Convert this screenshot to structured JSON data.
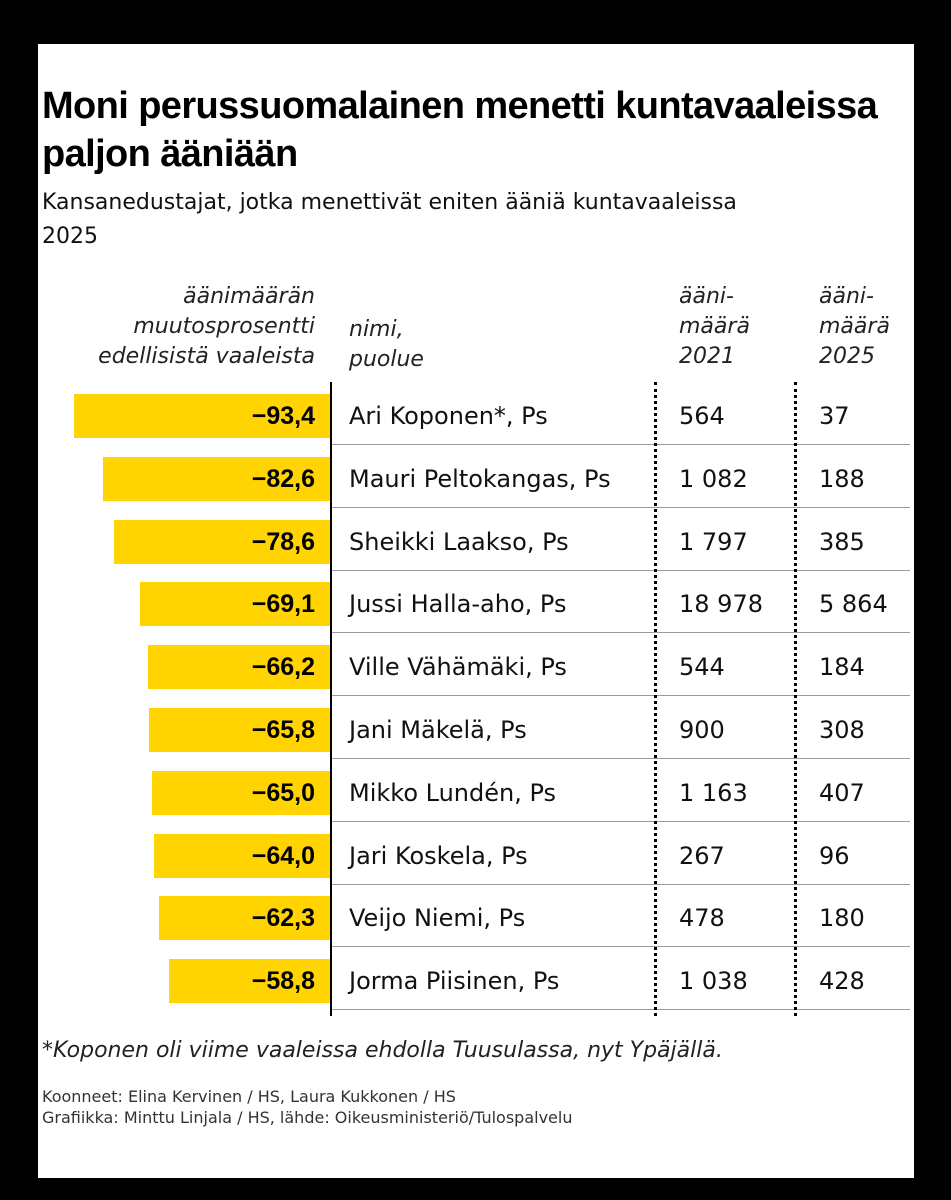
{
  "title": "Moni perussuomalainen menetti kuntavaaleissa paljon ääniään",
  "subtitle": "Kansanedustajat, jotka menettivät eniten ääniä kuntavaaleissa 2025",
  "headers": {
    "change": "äänimäärän\nmuutosprosentti\nedellisistä vaaleista",
    "name": "nimi,\npuolue",
    "votes_2021": "ääni-\nmäärä\n2021",
    "votes_2025": "ääni-\nmäärä\n2025"
  },
  "colors": {
    "bar": "#FFD400",
    "background": "#000000",
    "card": "#ffffff"
  },
  "chart_data": {
    "type": "bar",
    "orientation": "horizontal",
    "title": "Moni perussuomalainen menetti kuntavaaleissa paljon ääniään",
    "subtitle": "Kansanedustajat, jotka menettivät eniten ääniä kuntavaaleissa 2025",
    "xlabel": "äänimäärän muutosprosentti edellisistä vaaleista",
    "categories": [
      "Ari Koponen*, Ps",
      "Mauri Peltokangas, Ps",
      "Sheikki Laakso, Ps",
      "Jussi Halla-aho, Ps",
      "Ville Vähämäki, Ps",
      "Jani Mäkelä, Ps",
      "Mikko Lundén, Ps",
      "Jari Koskela, Ps",
      "Veijo Niemi, Ps",
      "Jorma Piisinen, Ps"
    ],
    "values": [
      -93.4,
      -82.6,
      -78.6,
      -69.1,
      -66.2,
      -65.8,
      -65.0,
      -64.0,
      -62.3,
      -58.8
    ],
    "xlim": [
      -100,
      0
    ],
    "rows": [
      {
        "label": "−93,4",
        "name": "Ari Koponen*, Ps",
        "votes_2021": "564",
        "votes_2025": "37"
      },
      {
        "label": "−82,6",
        "name": "Mauri Peltokangas, Ps",
        "votes_2021": "1 082",
        "votes_2025": "188"
      },
      {
        "label": "−78,6",
        "name": "Sheikki Laakso, Ps",
        "votes_2021": "1 797",
        "votes_2025": "385"
      },
      {
        "label": "−69,1",
        "name": "Jussi Halla-aho, Ps",
        "votes_2021": "18 978",
        "votes_2025": "5 864"
      },
      {
        "label": "−66,2",
        "name": "Ville Vähämäki, Ps",
        "votes_2021": "544",
        "votes_2025": "184"
      },
      {
        "label": "−65,8",
        "name": "Jani Mäkelä, Ps",
        "votes_2021": "900",
        "votes_2025": "308"
      },
      {
        "label": "−65,0",
        "name": "Mikko Lundén, Ps",
        "votes_2021": "1 163",
        "votes_2025": "407"
      },
      {
        "label": "−64,0",
        "name": "Jari Koskela, Ps",
        "votes_2021": "267",
        "votes_2025": "96"
      },
      {
        "label": "−62,3",
        "name": "Veijo Niemi, Ps",
        "votes_2021": "478",
        "votes_2025": "180"
      },
      {
        "label": "−58,8",
        "name": "Jorma Piisinen, Ps",
        "votes_2021": "1 038",
        "votes_2025": "428"
      }
    ]
  },
  "footnote": "*Koponen oli viime vaaleissa ehdolla Tuusulassa, nyt Ypäjällä.",
  "credits": {
    "compiled": "Koonneet: Elina Kervinen / HS, Laura Kukkonen / HS",
    "graphics": "Grafiikka: Minttu Linjala / HS, lähde: Oikeusministeriö/Tulospalvelu"
  }
}
